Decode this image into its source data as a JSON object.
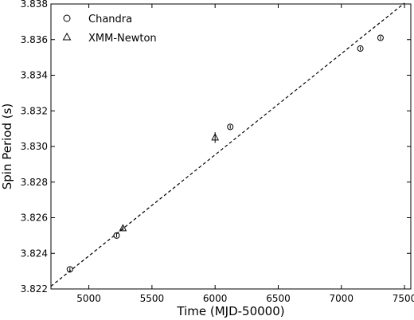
{
  "chart_data": {
    "type": "scatter",
    "xlabel": "Time (MJD-50000)",
    "ylabel": "Spin Period (s)",
    "xlim": [
      4700,
      7550
    ],
    "ylim": [
      3.822,
      3.838
    ],
    "xticks": [
      5000,
      5500,
      6000,
      6500,
      7000,
      7500
    ],
    "xtick_labels": [
      "5000",
      "5500",
      "6000",
      "6500",
      "7000",
      "7500"
    ],
    "yticks": [
      3.822,
      3.824,
      3.826,
      3.828,
      3.83,
      3.832,
      3.834,
      3.836,
      3.838
    ],
    "ytick_labels": [
      "3.822",
      "3.824",
      "3.826",
      "3.828",
      "3.830",
      "3.832",
      "3.834",
      "3.836",
      "3.838"
    ],
    "grid": false,
    "legend_position": "top-left",
    "series": [
      {
        "name": "Chandra",
        "marker": "circle",
        "color": "#000000",
        "points": [
          {
            "x": 4850,
            "y": 3.8231,
            "yerr": 0.0001
          },
          {
            "x": 5220,
            "y": 3.825,
            "yerr": 0.0001
          },
          {
            "x": 6120,
            "y": 3.8311,
            "yerr": 0.0001
          },
          {
            "x": 7150,
            "y": 3.8355,
            "yerr": 0.0001
          },
          {
            "x": 7310,
            "y": 3.8361,
            "yerr": 0.0001
          }
        ]
      },
      {
        "name": "XMM-Newton",
        "marker": "triangle",
        "color": "#000000",
        "points": [
          {
            "x": 5270,
            "y": 3.8254,
            "yerr": 0.0001
          },
          {
            "x": 6000,
            "y": 3.8305,
            "yerr": 0.0003
          }
        ]
      }
    ],
    "fit_line": {
      "style": "dashed",
      "color": "#000000",
      "points": [
        {
          "x": 4700,
          "y": 3.82215
        },
        {
          "x": 7500,
          "y": 3.83805
        }
      ]
    }
  }
}
